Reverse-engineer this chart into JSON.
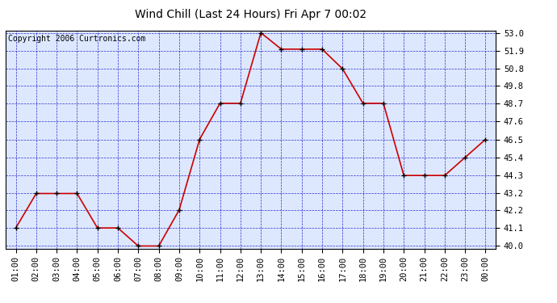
{
  "title": "Wind Chill (Last 24 Hours) Fri Apr 7 00:02",
  "copyright": "Copyright 2006 Curtronics.com",
  "x_labels": [
    "01:00",
    "02:00",
    "03:00",
    "04:00",
    "05:00",
    "06:00",
    "07:00",
    "08:00",
    "09:00",
    "10:00",
    "11:00",
    "12:00",
    "13:00",
    "14:00",
    "15:00",
    "16:00",
    "17:00",
    "18:00",
    "19:00",
    "20:00",
    "21:00",
    "22:00",
    "23:00",
    "00:00"
  ],
  "y_values": [
    41.1,
    43.2,
    43.2,
    43.2,
    41.1,
    41.1,
    40.0,
    40.0,
    42.2,
    46.5,
    48.7,
    48.7,
    53.0,
    52.0,
    52.0,
    52.0,
    50.8,
    48.7,
    48.7,
    44.3,
    44.3,
    44.3,
    45.4,
    46.5
  ],
  "ylim_min": 40.0,
  "ylim_max": 53.0,
  "yticks": [
    40.0,
    41.1,
    42.2,
    43.2,
    44.3,
    45.4,
    46.5,
    47.6,
    48.7,
    49.8,
    50.8,
    51.9,
    53.0
  ],
  "line_color": "#cc0000",
  "marker_color": "#000000",
  "bg_color": "#ffffff",
  "plot_bg_color": "#dde8ff",
  "grid_color": "#0000bb",
  "title_fontsize": 10,
  "axis_fontsize": 7.5,
  "copyright_fontsize": 7
}
